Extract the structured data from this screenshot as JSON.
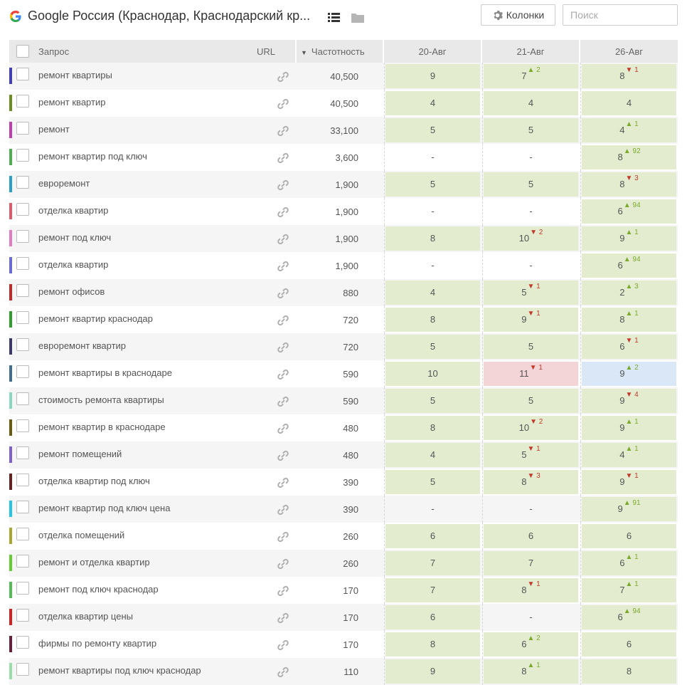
{
  "header": {
    "title": "Google Россия (Краснодар, Краснодарский кр...",
    "columns_button": "Колонки",
    "search_placeholder": "Поиск"
  },
  "table": {
    "col_query": "Запрос",
    "col_url": "URL",
    "col_freq": "Частотность",
    "dates": [
      "20-Авг",
      "21-Авг",
      "26-Авг"
    ],
    "rows": [
      {
        "color": "#3f3fbf",
        "query": "ремонт квартиры",
        "freq": "40,500",
        "p": [
          {
            "v": "9",
            "bg": "green"
          },
          {
            "v": "7",
            "ch": "up",
            "d": "2",
            "bg": "green"
          },
          {
            "v": "8",
            "ch": "down",
            "d": "1",
            "bg": "green"
          }
        ]
      },
      {
        "color": "#6b8e23",
        "query": "ремонт квартир",
        "freq": "40,500",
        "p": [
          {
            "v": "4",
            "bg": "green"
          },
          {
            "v": "4",
            "bg": "green"
          },
          {
            "v": "4",
            "bg": "green"
          }
        ]
      },
      {
        "color": "#c03eb0",
        "query": "ремонт",
        "freq": "33,100",
        "p": [
          {
            "v": "5",
            "bg": "green"
          },
          {
            "v": "5",
            "bg": "green"
          },
          {
            "v": "4",
            "ch": "up",
            "d": "1",
            "bg": "green"
          }
        ]
      },
      {
        "color": "#4caf50",
        "query": "ремонт квартир под ключ",
        "freq": "3,600",
        "p": [
          {
            "v": "-",
            "bg": "empty"
          },
          {
            "v": "-",
            "bg": "empty"
          },
          {
            "v": "8",
            "ch": "up",
            "d": "92",
            "bg": "green"
          }
        ]
      },
      {
        "color": "#2aa0c8",
        "query": "евроремонт",
        "freq": "1,900",
        "p": [
          {
            "v": "5",
            "bg": "green"
          },
          {
            "v": "5",
            "bg": "green"
          },
          {
            "v": "8",
            "ch": "down",
            "d": "3",
            "bg": "green"
          }
        ]
      },
      {
        "color": "#e05a6a",
        "query": "отделка квартир",
        "freq": "1,900",
        "p": [
          {
            "v": "-",
            "bg": "empty"
          },
          {
            "v": "-",
            "bg": "empty"
          },
          {
            "v": "6",
            "ch": "up",
            "d": "94",
            "bg": "green"
          }
        ]
      },
      {
        "color": "#e37bc0",
        "query": "ремонт под ключ",
        "freq": "1,900",
        "p": [
          {
            "v": "8",
            "bg": "green"
          },
          {
            "v": "10",
            "ch": "down",
            "d": "2",
            "bg": "green"
          },
          {
            "v": "9",
            "ch": "up",
            "d": "1",
            "bg": "green"
          }
        ]
      },
      {
        "color": "#6a6ae0",
        "query": "отделка квартир",
        "freq": "1,900",
        "p": [
          {
            "v": "-",
            "bg": "empty"
          },
          {
            "v": "-",
            "bg": "empty"
          },
          {
            "v": "6",
            "ch": "up",
            "d": "94",
            "bg": "green"
          }
        ]
      },
      {
        "color": "#c62828",
        "query": "ремонт офисов",
        "freq": "880",
        "p": [
          {
            "v": "4",
            "bg": "green"
          },
          {
            "v": "5",
            "ch": "down",
            "d": "1",
            "bg": "green"
          },
          {
            "v": "2",
            "ch": "up",
            "d": "3",
            "bg": "green"
          }
        ]
      },
      {
        "color": "#2e9e2e",
        "query": "ремонт квартир краснодар",
        "freq": "720",
        "p": [
          {
            "v": "8",
            "bg": "green"
          },
          {
            "v": "9",
            "ch": "down",
            "d": "1",
            "bg": "green"
          },
          {
            "v": "8",
            "ch": "up",
            "d": "1",
            "bg": "green"
          }
        ]
      },
      {
        "color": "#3a3a6a",
        "query": "евроремонт квартир",
        "freq": "720",
        "p": [
          {
            "v": "5",
            "bg": "green"
          },
          {
            "v": "5",
            "bg": "green"
          },
          {
            "v": "6",
            "ch": "down",
            "d": "1",
            "bg": "green"
          }
        ]
      },
      {
        "color": "#3f6f8f",
        "query": "ремонт квартиры в краснодаре",
        "freq": "590",
        "p": [
          {
            "v": "10",
            "bg": "green"
          },
          {
            "v": "11",
            "ch": "down",
            "d": "1",
            "bg": "red"
          },
          {
            "v": "9",
            "ch": "up",
            "d": "2",
            "bg": "blue"
          }
        ]
      },
      {
        "color": "#88d8c0",
        "query": "стоимость ремонта квартиры",
        "freq": "590",
        "p": [
          {
            "v": "5",
            "bg": "green"
          },
          {
            "v": "5",
            "bg": "green"
          },
          {
            "v": "9",
            "ch": "down",
            "d": "4",
            "bg": "green"
          }
        ]
      },
      {
        "color": "#6b5a10",
        "query": "ремонт квартир в краснодаре",
        "freq": "480",
        "p": [
          {
            "v": "8",
            "bg": "green"
          },
          {
            "v": "10",
            "ch": "down",
            "d": "2",
            "bg": "green"
          },
          {
            "v": "9",
            "ch": "up",
            "d": "1",
            "bg": "green"
          }
        ]
      },
      {
        "color": "#7d5fd0",
        "query": "ремонт помещений",
        "freq": "480",
        "p": [
          {
            "v": "4",
            "bg": "green"
          },
          {
            "v": "5",
            "ch": "down",
            "d": "1",
            "bg": "green"
          },
          {
            "v": "4",
            "ch": "up",
            "d": "1",
            "bg": "green"
          }
        ]
      },
      {
        "color": "#6b2020",
        "query": "отделка квартир под ключ",
        "freq": "390",
        "p": [
          {
            "v": "5",
            "bg": "green"
          },
          {
            "v": "8",
            "ch": "down",
            "d": "3",
            "bg": "green"
          },
          {
            "v": "9",
            "ch": "down",
            "d": "1",
            "bg": "green"
          }
        ]
      },
      {
        "color": "#22c4e8",
        "query": "ремонт квартир под ключ цена",
        "freq": "390",
        "p": [
          {
            "v": "-",
            "bg": "empty"
          },
          {
            "v": "-",
            "bg": "empty"
          },
          {
            "v": "9",
            "ch": "up",
            "d": "91",
            "bg": "green"
          }
        ]
      },
      {
        "color": "#a8a830",
        "query": "отделка помещений",
        "freq": "260",
        "p": [
          {
            "v": "6",
            "bg": "green"
          },
          {
            "v": "6",
            "bg": "green"
          },
          {
            "v": "6",
            "bg": "green"
          }
        ]
      },
      {
        "color": "#66cc33",
        "query": "ремонт и отделка квартир",
        "freq": "260",
        "p": [
          {
            "v": "7",
            "bg": "green"
          },
          {
            "v": "7",
            "bg": "green"
          },
          {
            "v": "6",
            "ch": "up",
            "d": "1",
            "bg": "green"
          }
        ]
      },
      {
        "color": "#55bb55",
        "query": "ремонт под ключ краснодар",
        "freq": "170",
        "p": [
          {
            "v": "7",
            "bg": "green"
          },
          {
            "v": "8",
            "ch": "down",
            "d": "1",
            "bg": "green"
          },
          {
            "v": "7",
            "ch": "up",
            "d": "1",
            "bg": "green"
          }
        ]
      },
      {
        "color": "#d42020",
        "query": "отделка квартир цены",
        "freq": "170",
        "p": [
          {
            "v": "6",
            "bg": "green"
          },
          {
            "v": "-",
            "bg": "empty"
          },
          {
            "v": "6",
            "ch": "up",
            "d": "94",
            "bg": "green"
          }
        ]
      },
      {
        "color": "#6b1f3a",
        "query": "фирмы по ремонту квартир",
        "freq": "170",
        "p": [
          {
            "v": "8",
            "bg": "green"
          },
          {
            "v": "6",
            "ch": "up",
            "d": "2",
            "bg": "green"
          },
          {
            "v": "6",
            "bg": "green"
          }
        ]
      },
      {
        "color": "#99ddaa",
        "query": "ремонт квартиры под ключ краснодар",
        "freq": "110",
        "p": [
          {
            "v": "9",
            "bg": "green"
          },
          {
            "v": "8",
            "ch": "up",
            "d": "1",
            "bg": "green"
          },
          {
            "v": "8",
            "bg": "green"
          }
        ]
      }
    ]
  }
}
